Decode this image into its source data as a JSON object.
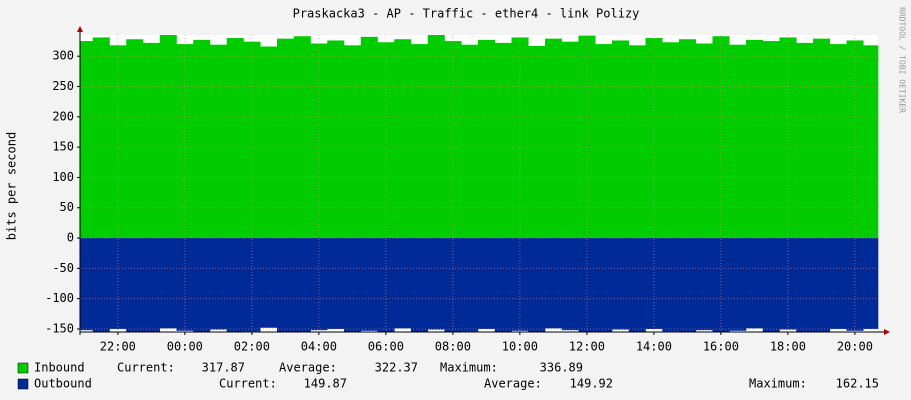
{
  "chart_data": {
    "type": "area",
    "title": "Praskacka3 - AP - Traffic - ether4 - link Polizy",
    "y_label": "bits per second",
    "watermark": "RRDTOOL / TOBI OETIKER",
    "xlim": [
      -1.13,
      22.69
    ],
    "xticks": [
      {
        "value": 0,
        "label": "22:00"
      },
      {
        "value": 2,
        "label": "00:00"
      },
      {
        "value": 4,
        "label": "02:00"
      },
      {
        "value": 6,
        "label": "04:00"
      },
      {
        "value": 8,
        "label": "06:00"
      },
      {
        "value": 10,
        "label": "08:00"
      },
      {
        "value": 12,
        "label": "10:00"
      },
      {
        "value": 14,
        "label": "12:00"
      },
      {
        "value": 16,
        "label": "14:00"
      },
      {
        "value": 18,
        "label": "16:00"
      },
      {
        "value": 20,
        "label": "18:00"
      },
      {
        "value": 22,
        "label": "20:00"
      }
    ],
    "ylim": [
      -155,
      335
    ],
    "yticks": [
      -150,
      -100,
      -50,
      0,
      50,
      100,
      150,
      200,
      250,
      300
    ],
    "grid": true,
    "x": [
      -1,
      -0.5,
      0,
      0.5,
      1,
      1.5,
      2,
      2.5,
      3,
      3.5,
      4,
      4.5,
      5,
      5.5,
      6,
      6.5,
      7,
      7.5,
      8,
      8.5,
      9,
      9.5,
      10,
      10.5,
      11,
      11.5,
      12,
      12.5,
      13,
      13.5,
      14,
      14.5,
      15,
      15.5,
      16,
      16.5,
      17,
      17.5,
      18,
      18.5,
      19,
      19.5,
      20,
      20.5,
      21,
      21.5,
      22,
      22.5
    ],
    "series": [
      {
        "name": "Inbound",
        "color": "#00cc00",
        "values": [
          325,
          331,
          318,
          328,
          322,
          335,
          320,
          327,
          319,
          330,
          324,
          316,
          329,
          333,
          321,
          326,
          318,
          332,
          323,
          328,
          320,
          336,
          325,
          319,
          327,
          322,
          331,
          317,
          329,
          324,
          334,
          320,
          326,
          318,
          330,
          323,
          328,
          321,
          333,
          319,
          327,
          325,
          331,
          322,
          329,
          320,
          326,
          318
        ],
        "stats": [
          {
            "label": "Current:",
            "value": 317.87
          },
          {
            "label": "Average:",
            "value": 322.37
          },
          {
            "label": "Maximum:",
            "value": 336.89
          }
        ]
      },
      {
        "name": "Outbound",
        "color": "#002a97",
        "values": [
          -152,
          -158,
          -150,
          -155,
          -161,
          -149,
          -153,
          -157,
          -151,
          -160,
          -154,
          -148,
          -156,
          -159,
          -152,
          -150,
          -162,
          -153,
          -155,
          -149,
          -158,
          -151,
          -157,
          -154,
          -150,
          -160,
          -153,
          -156,
          -149,
          -152,
          -158,
          -155,
          -151,
          -161,
          -150,
          -154,
          -157,
          -152,
          -159,
          -153,
          -149,
          -156,
          -151,
          -158,
          -155,
          -150,
          -153,
          -150
        ],
        "stats": [
          {
            "label": "Current:",
            "value": 149.87
          },
          {
            "label": "Average:",
            "value": 149.92
          },
          {
            "label": "Maximum:",
            "value": 162.15
          }
        ]
      }
    ]
  }
}
